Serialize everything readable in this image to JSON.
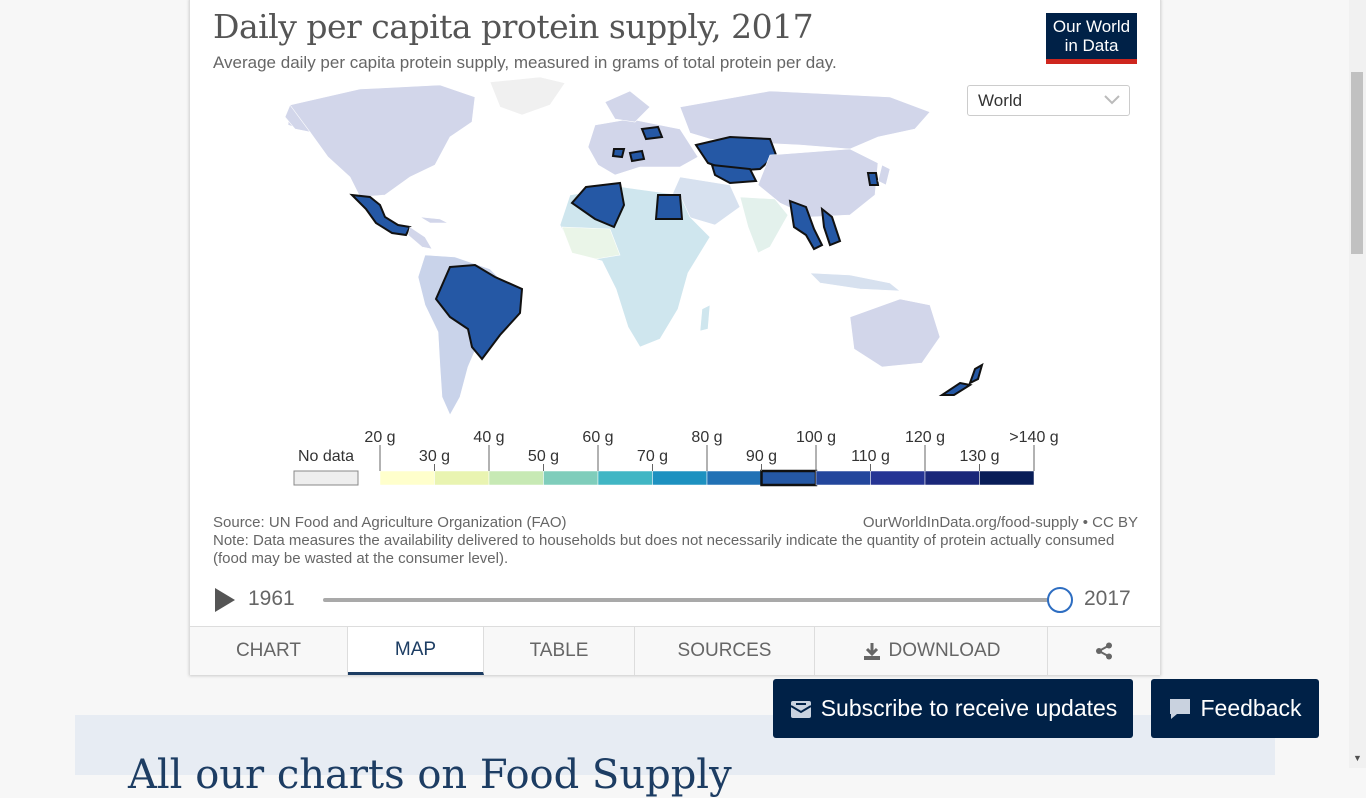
{
  "chart": {
    "title": "Daily per capita protein supply, 2017",
    "subtitle": "Average daily per capita protein supply, measured in grams of total protein per day.",
    "logo": {
      "line1": "Our World",
      "line2": "in Data",
      "bg": "#002147",
      "accent": "#ce261e"
    },
    "region_select": {
      "value": "World",
      "icon": "chevron-down-icon"
    },
    "legend": {
      "no_data_label": "No data",
      "no_data_color": "#eeeeee",
      "bins": [
        {
          "label": "20 g",
          "color": "#ffffcc"
        },
        {
          "label": "30 g",
          "color": "#e9f4b1"
        },
        {
          "label": "40 g",
          "color": "#c7e9b4"
        },
        {
          "label": "50 g",
          "color": "#7fcdbb"
        },
        {
          "label": "60 g",
          "color": "#41b6c4"
        },
        {
          "label": "70 g",
          "color": "#1d91c0"
        },
        {
          "label": "80 g",
          "color": "#2171b5"
        },
        {
          "label": "90 g",
          "color": "#2558a5"
        },
        {
          "label": "100 g",
          "color": "#23469c"
        },
        {
          "label": "110 g",
          "color": "#253494"
        },
        {
          "label": "120 g",
          "color": "#1a2779"
        },
        {
          "label": "130 g",
          "color": "#081d58"
        }
      ],
      "last_label": ">140 g",
      "highlighted_bin": "90 g"
    },
    "source": "Source: UN Food and Agriculture Organization (FAO)",
    "url": "OurWorldInData.org/food-supply • CC BY",
    "note": "Note: Data measures the availability delivered to households but does not necessarily indicate the quantity of protein actually consumed (food may be wasted at the consumer level).",
    "timeline": {
      "start": "1961",
      "end": "2017",
      "position": 1.0
    },
    "tabs": [
      {
        "label": "CHART",
        "active": false
      },
      {
        "label": "MAP",
        "active": true
      },
      {
        "label": "TABLE",
        "active": false
      },
      {
        "label": "SOURCES",
        "active": false
      },
      {
        "label": "DOWNLOAD",
        "active": false,
        "icon": "download-icon"
      },
      {
        "label": "",
        "active": false,
        "icon": "share-icon"
      }
    ]
  },
  "buttons": {
    "subscribe": "Subscribe to receive updates",
    "feedback": "Feedback"
  },
  "page": {
    "section_heading_partial": "All our charts on Food Supply"
  }
}
